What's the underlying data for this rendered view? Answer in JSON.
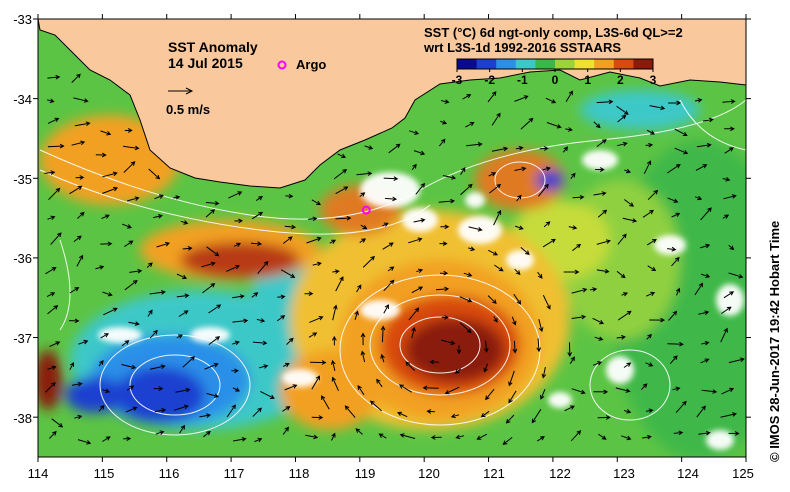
{
  "map": {
    "title": "SST Anomaly",
    "date": "14 Jul 2015",
    "legend_marker_label": "Argo",
    "velocity_scale_label": "0.5 m/s",
    "product_line1": "SST (°C) 6d ngt-only comp, L3S-6d QL>=2",
    "product_line2": "wrt L3S-1d 1992-2016 SSTAARS",
    "side_credit": "© IMOS 28-Jun-2017 19:42 Hobart Time",
    "lon_range": [
      114,
      125
    ],
    "lat_range": [
      -38.5,
      -33
    ],
    "x_ticks": [
      "114",
      "115",
      "116",
      "117",
      "118",
      "119",
      "120",
      "121",
      "122",
      "123",
      "124",
      "125"
    ],
    "y_ticks": [
      "-33",
      "-34",
      "-35",
      "-36",
      "-37",
      "-38"
    ],
    "colorbar": {
      "ticks": [
        "-3",
        "-2",
        "-1",
        "0",
        "1",
        "2",
        "3"
      ],
      "colors": [
        "#0a0a90",
        "#1c3fd0",
        "#2b8fe8",
        "#3cc8c8",
        "#39b84a",
        "#9ed23a",
        "#f0e030",
        "#f2a020",
        "#d84a10",
        "#8a1a0a"
      ]
    },
    "argo_float": {
      "lon": 119.1,
      "lat": -35.4
    },
    "colors": {
      "land": "#f9c89c",
      "argo": "#ff00ff",
      "anomaly_warm": "#8a1a0a",
      "anomaly_cold": "#0a0a90"
    }
  }
}
